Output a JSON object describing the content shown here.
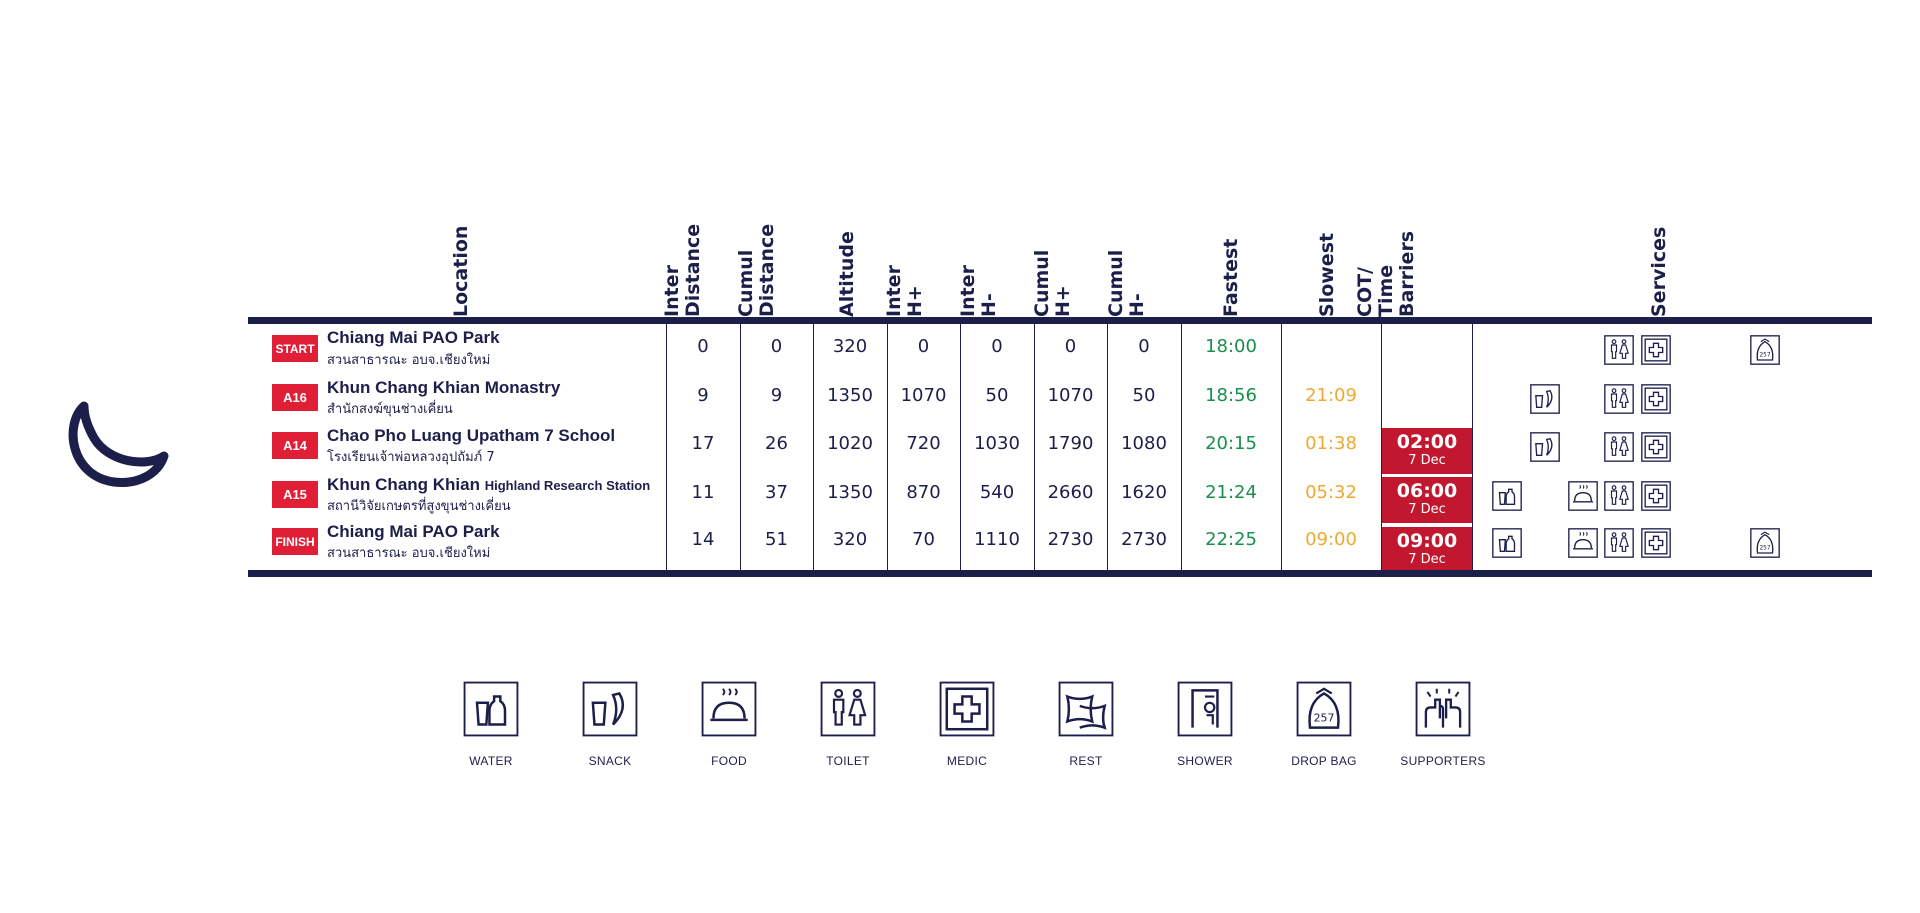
{
  "headers": {
    "location": [
      "Location"
    ],
    "inter_distance": [
      "Inter",
      "Distance"
    ],
    "cumul_distance": [
      "Cumul",
      "Distance"
    ],
    "altitude": [
      "Altitude"
    ],
    "inter_hplus": [
      "Inter",
      "H+"
    ],
    "inter_hminus": [
      "Inter",
      "H-"
    ],
    "cumul_hplus": [
      "Cumul",
      "H+"
    ],
    "cumul_hminus": [
      "Cumul",
      "H-"
    ],
    "fastest": [
      "Fastest"
    ],
    "slowest": [
      "Slowest"
    ],
    "cot": [
      "COT/",
      "Time",
      "Barriers"
    ],
    "services": [
      "Services"
    ]
  },
  "rows": [
    {
      "tag": "START",
      "name": "Chiang Mai PAO Park",
      "name_small": "",
      "thai": "สวนสาธารณะ อบจ.เชียงใหม่",
      "inter_distance": "0",
      "cumul_distance": "0",
      "altitude": "320",
      "inter_hplus": "0",
      "inter_hminus": "0",
      "cumul_hplus": "0",
      "cumul_hminus": "0",
      "fastest": "18:00",
      "slowest": "",
      "cot_time": "",
      "cot_date": "",
      "services": [
        "toilet-icon",
        "medic-icon",
        "drop-bag-icon"
      ]
    },
    {
      "tag": "A16",
      "name": "Khun Chang Khian Monastry",
      "name_small": "",
      "thai": "สำนักสงฆ์ขุนช่างเคี่ยน",
      "inter_distance": "9",
      "cumul_distance": "9",
      "altitude": "1350",
      "inter_hplus": "1070",
      "inter_hminus": "50",
      "cumul_hplus": "1070",
      "cumul_hminus": "50",
      "fastest": "18:56",
      "slowest": "21:09",
      "cot_time": "",
      "cot_date": "",
      "services": [
        "snack-icon",
        "toilet-icon",
        "medic-icon"
      ]
    },
    {
      "tag": "A14",
      "name": "Chao Pho Luang Upatham 7 School",
      "name_small": "",
      "thai": "โรงเรียนเจ้าพ่อหลวงอุปถัมภ์ 7",
      "inter_distance": "17",
      "cumul_distance": "26",
      "altitude": "1020",
      "inter_hplus": "720",
      "inter_hminus": "1030",
      "cumul_hplus": "1790",
      "cumul_hminus": "1080",
      "fastest": "20:15",
      "slowest": "01:38",
      "cot_time": "02:00",
      "cot_date": "7 Dec",
      "services": [
        "snack-icon",
        "toilet-icon",
        "medic-icon"
      ]
    },
    {
      "tag": "A15",
      "name": "Khun Chang Khian",
      "name_small": "Highland Research Station",
      "thai": "สถานีวิจัยเกษตรที่สูงขุนช่างเคี่ยน",
      "inter_distance": "11",
      "cumul_distance": "37",
      "altitude": "1350",
      "inter_hplus": "870",
      "inter_hminus": "540",
      "cumul_hplus": "2660",
      "cumul_hminus": "1620",
      "fastest": "21:24",
      "slowest": "05:32",
      "cot_time": "06:00",
      "cot_date": "7 Dec",
      "services": [
        "water-icon",
        "food-icon",
        "toilet-icon",
        "medic-icon"
      ]
    },
    {
      "tag": "FINISH",
      "name": "Chiang Mai PAO Park",
      "name_small": "",
      "thai": "สวนสาธารณะ อบจ.เชียงใหม่",
      "inter_distance": "14",
      "cumul_distance": "51",
      "altitude": "320",
      "inter_hplus": "70",
      "inter_hminus": "1110",
      "cumul_hplus": "2730",
      "cumul_hminus": "2730",
      "fastest": "22:25",
      "slowest": "09:00",
      "cot_time": "09:00",
      "cot_date": "7 Dec",
      "services": [
        "water-icon",
        "food-icon",
        "toilet-icon",
        "medic-icon",
        "drop-bag-icon"
      ]
    }
  ],
  "legend": [
    {
      "icon": "water-icon",
      "label": "WATER"
    },
    {
      "icon": "snack-icon",
      "label": "SNACK"
    },
    {
      "icon": "food-icon",
      "label": "FOOD"
    },
    {
      "icon": "toilet-icon",
      "label": "TOILET"
    },
    {
      "icon": "medic-icon",
      "label": "MEDIC"
    },
    {
      "icon": "rest-icon",
      "label": "REST"
    },
    {
      "icon": "shower-icon",
      "label": "SHOWER"
    },
    {
      "icon": "drop-bag-icon",
      "label": "DROP BAG"
    },
    {
      "icon": "supporters-icon",
      "label": "SUPPORTERS"
    }
  ],
  "drop_bag_number": "257",
  "colors": {
    "navy": "#1c1f4a",
    "tag_red": "#e01f37",
    "cot_red": "#c2182f",
    "fastest_green": "#1a8f4c",
    "slowest_orange": "#f0a830"
  }
}
